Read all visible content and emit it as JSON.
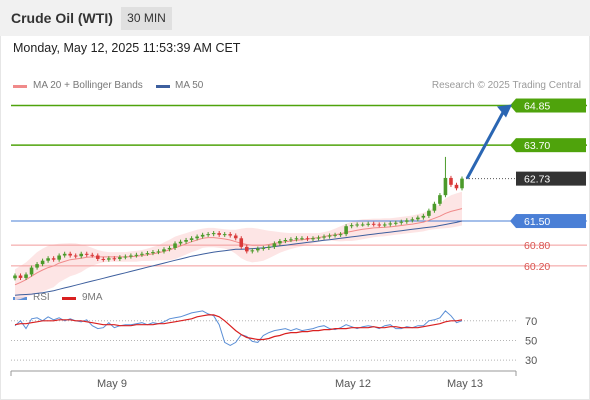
{
  "header": {
    "title": "Crude Oil (WTI)",
    "timeframe": "30 MIN",
    "datetime": "Monday, May 12, 2025 11:53:39 AM CET"
  },
  "legend": {
    "ma20_label": "MA 20 + Bollinger Bands",
    "ma50_label": "MA 50",
    "rsi_label": "RSI",
    "ma9_label": "9MA",
    "copyright": "Research © 2025 Trading Central"
  },
  "colors": {
    "ma20": "#f08a8a",
    "ma50": "#3d5f9e",
    "bollinger_fill": "#fde0e0",
    "target": "#4fa30c",
    "pivot": "#4a7fd6",
    "support": "#f29a9a",
    "current": "#333333",
    "rsi": "#5b8fd6",
    "ma9": "#d92020",
    "arrow": "#2a66b3",
    "candle_up": "#4b9a2a",
    "candle_down": "#d93a3a"
  },
  "chart_data": [
    {
      "type": "candlestick",
      "name": "price",
      "x_tick_labels": [
        "May 9",
        "May 12",
        "May 13"
      ],
      "ylim": [
        59.5,
        65.3
      ],
      "levels": [
        {
          "label": "64.85",
          "value": 64.85,
          "role": "target"
        },
        {
          "label": "63.70",
          "value": 63.7,
          "role": "target"
        },
        {
          "label": "62.73",
          "value": 62.73,
          "role": "current"
        },
        {
          "label": "61.50",
          "value": 61.5,
          "role": "pivot"
        },
        {
          "label": "60.80",
          "value": 60.8,
          "role": "support"
        },
        {
          "label": "60.20",
          "value": 60.2,
          "role": "support"
        }
      ],
      "close": [
        59.92,
        59.85,
        59.95,
        60.15,
        60.25,
        60.35,
        60.42,
        60.38,
        60.5,
        60.55,
        60.5,
        60.48,
        60.55,
        60.52,
        60.5,
        60.4,
        60.38,
        60.42,
        60.4,
        60.45,
        60.47,
        60.5,
        60.52,
        60.55,
        60.57,
        60.6,
        60.62,
        60.68,
        60.72,
        60.85,
        60.9,
        60.95,
        61.0,
        61.05,
        61.1,
        61.12,
        61.15,
        61.1,
        61.12,
        61.08,
        61.0,
        60.75,
        60.62,
        60.65,
        60.7,
        60.72,
        60.75,
        60.85,
        60.92,
        60.95,
        60.97,
        61.0,
        61.0,
        60.98,
        61.0,
        61.02,
        61.05,
        61.08,
        61.1,
        61.12,
        61.35,
        61.38,
        61.4,
        61.4,
        61.42,
        61.4,
        61.38,
        61.4,
        61.43,
        61.45,
        61.48,
        61.52,
        61.55,
        61.6,
        61.65,
        61.8,
        62.0,
        62.25,
        62.75,
        62.55,
        62.45,
        62.73
      ],
      "ma20": [
        59.65,
        59.72,
        59.8,
        59.9,
        60.0,
        60.08,
        60.15,
        60.2,
        60.28,
        60.33,
        60.38,
        60.4,
        60.42,
        60.45,
        60.46,
        60.46,
        60.46,
        60.46,
        60.46,
        60.46,
        60.46,
        60.47,
        60.48,
        60.5,
        60.52,
        60.55,
        60.58,
        60.62,
        60.66,
        60.72,
        60.78,
        60.84,
        60.9,
        60.95,
        61.0,
        61.02,
        61.02,
        61.0,
        60.98,
        60.95,
        60.9,
        60.85,
        60.82,
        60.8,
        60.8,
        60.8,
        60.82,
        60.85,
        60.88,
        60.9,
        60.92,
        60.94,
        60.96,
        60.98,
        61.0,
        61.02,
        61.05,
        61.08,
        61.1,
        61.13,
        61.17,
        61.2,
        61.23,
        61.26,
        61.28,
        61.3,
        61.31,
        61.32,
        61.33,
        61.35,
        61.37,
        61.39,
        61.41,
        61.44,
        61.47,
        61.52,
        61.58,
        61.64,
        61.72,
        61.78,
        61.82,
        61.86
      ],
      "ma50": [
        59.35,
        59.36,
        59.37,
        59.38,
        59.4,
        59.42,
        59.45,
        59.48,
        59.52,
        59.56,
        59.6,
        59.64,
        59.68,
        59.72,
        59.76,
        59.8,
        59.84,
        59.88,
        59.92,
        59.96,
        60.0,
        60.04,
        60.08,
        60.12,
        60.16,
        60.2,
        60.24,
        60.28,
        60.32,
        60.36,
        60.4,
        60.44,
        60.48,
        60.51,
        60.54,
        60.57,
        60.6,
        60.62,
        60.64,
        60.66,
        60.68,
        60.68,
        60.69,
        60.7,
        60.71,
        60.72,
        60.74,
        60.76,
        60.78,
        60.8,
        60.82,
        60.84,
        60.86,
        60.88,
        60.9,
        60.92,
        60.94,
        60.96,
        60.98,
        61.0,
        61.02,
        61.04,
        61.06,
        61.08,
        61.1,
        61.12,
        61.14,
        61.16,
        61.18,
        61.2,
        61.22,
        61.24,
        61.26,
        61.28,
        61.3,
        61.32,
        61.34,
        61.37,
        61.4,
        61.43,
        61.46,
        61.5
      ],
      "bb_upper": [
        60.1,
        60.2,
        60.3,
        60.45,
        60.6,
        60.7,
        60.78,
        60.82,
        60.84,
        60.85,
        60.86,
        60.85,
        60.82,
        60.78,
        60.72,
        60.66,
        60.62,
        60.6,
        60.6,
        60.6,
        60.6,
        60.62,
        60.64,
        60.66,
        60.7,
        60.75,
        60.8,
        60.88,
        60.96,
        61.05,
        61.1,
        61.15,
        61.2,
        61.25,
        61.28,
        61.3,
        61.3,
        61.28,
        61.26,
        61.25,
        61.25,
        61.28,
        61.3,
        61.3,
        61.28,
        61.25,
        61.22,
        61.2,
        61.18,
        61.16,
        61.15,
        61.15,
        61.15,
        61.15,
        61.15,
        61.15,
        61.18,
        61.22,
        61.28,
        61.35,
        61.42,
        61.48,
        61.52,
        61.55,
        61.56,
        61.57,
        61.57,
        61.58,
        61.58,
        61.6,
        61.62,
        61.64,
        61.66,
        61.7,
        61.74,
        61.8,
        61.9,
        62.0,
        62.15,
        62.25,
        62.3,
        62.35
      ],
      "bb_lower": [
        59.2,
        59.24,
        59.3,
        59.35,
        59.4,
        59.45,
        59.52,
        59.58,
        59.72,
        59.81,
        59.9,
        59.95,
        60.02,
        60.12,
        60.2,
        60.26,
        60.3,
        60.32,
        60.32,
        60.32,
        60.32,
        60.32,
        60.32,
        60.34,
        60.34,
        60.35,
        60.36,
        60.36,
        60.36,
        60.39,
        60.46,
        60.53,
        60.6,
        60.65,
        60.72,
        60.74,
        60.74,
        60.72,
        60.7,
        60.65,
        60.55,
        60.42,
        60.34,
        60.3,
        60.32,
        60.35,
        60.42,
        60.5,
        60.58,
        60.64,
        60.69,
        60.73,
        60.77,
        60.81,
        60.85,
        60.89,
        60.92,
        60.94,
        60.92,
        60.91,
        60.92,
        60.92,
        60.94,
        60.97,
        61.0,
        61.03,
        61.05,
        61.06,
        61.08,
        61.1,
        61.12,
        61.14,
        61.16,
        61.18,
        61.2,
        61.24,
        61.26,
        61.28,
        61.29,
        61.31,
        61.34,
        61.37
      ]
    },
    {
      "type": "line",
      "name": "rsi",
      "yticks": [
        70,
        50,
        30
      ],
      "ylim": [
        20,
        85
      ],
      "rsi": [
        65,
        70,
        62,
        72,
        73,
        70,
        74,
        71,
        73,
        70,
        72,
        70,
        69,
        71,
        65,
        62,
        63,
        68,
        63,
        65,
        66,
        66,
        67,
        68,
        66,
        68,
        67,
        69,
        72,
        73,
        74,
        76,
        78,
        79,
        80,
        77,
        75,
        66,
        48,
        45,
        48,
        56,
        54,
        49,
        48,
        55,
        58,
        60,
        61,
        62,
        60,
        62,
        60,
        61,
        62,
        64,
        65,
        62,
        61,
        63,
        66,
        64,
        62,
        64,
        65,
        64,
        62,
        65,
        66,
        62,
        62,
        64,
        63,
        65,
        65,
        70,
        71,
        73,
        80,
        75,
        68,
        70
      ],
      "ma9": [
        66,
        67,
        67,
        68,
        69,
        70,
        70,
        70,
        71,
        71,
        71,
        70,
        70,
        69,
        68,
        67,
        66,
        66,
        66,
        65,
        65,
        65,
        66,
        66,
        66,
        66,
        67,
        67,
        68,
        69,
        70,
        71,
        72,
        74,
        75,
        76,
        76,
        74,
        70,
        65,
        60,
        56,
        53,
        52,
        51,
        51,
        52,
        54,
        55,
        57,
        58,
        58,
        59,
        59,
        60,
        60,
        61,
        61,
        62,
        62,
        62,
        63,
        63,
        63,
        63,
        64,
        63,
        63,
        64,
        64,
        63,
        63,
        63,
        63,
        64,
        65,
        66,
        67,
        69,
        70,
        70,
        71
      ]
    }
  ]
}
